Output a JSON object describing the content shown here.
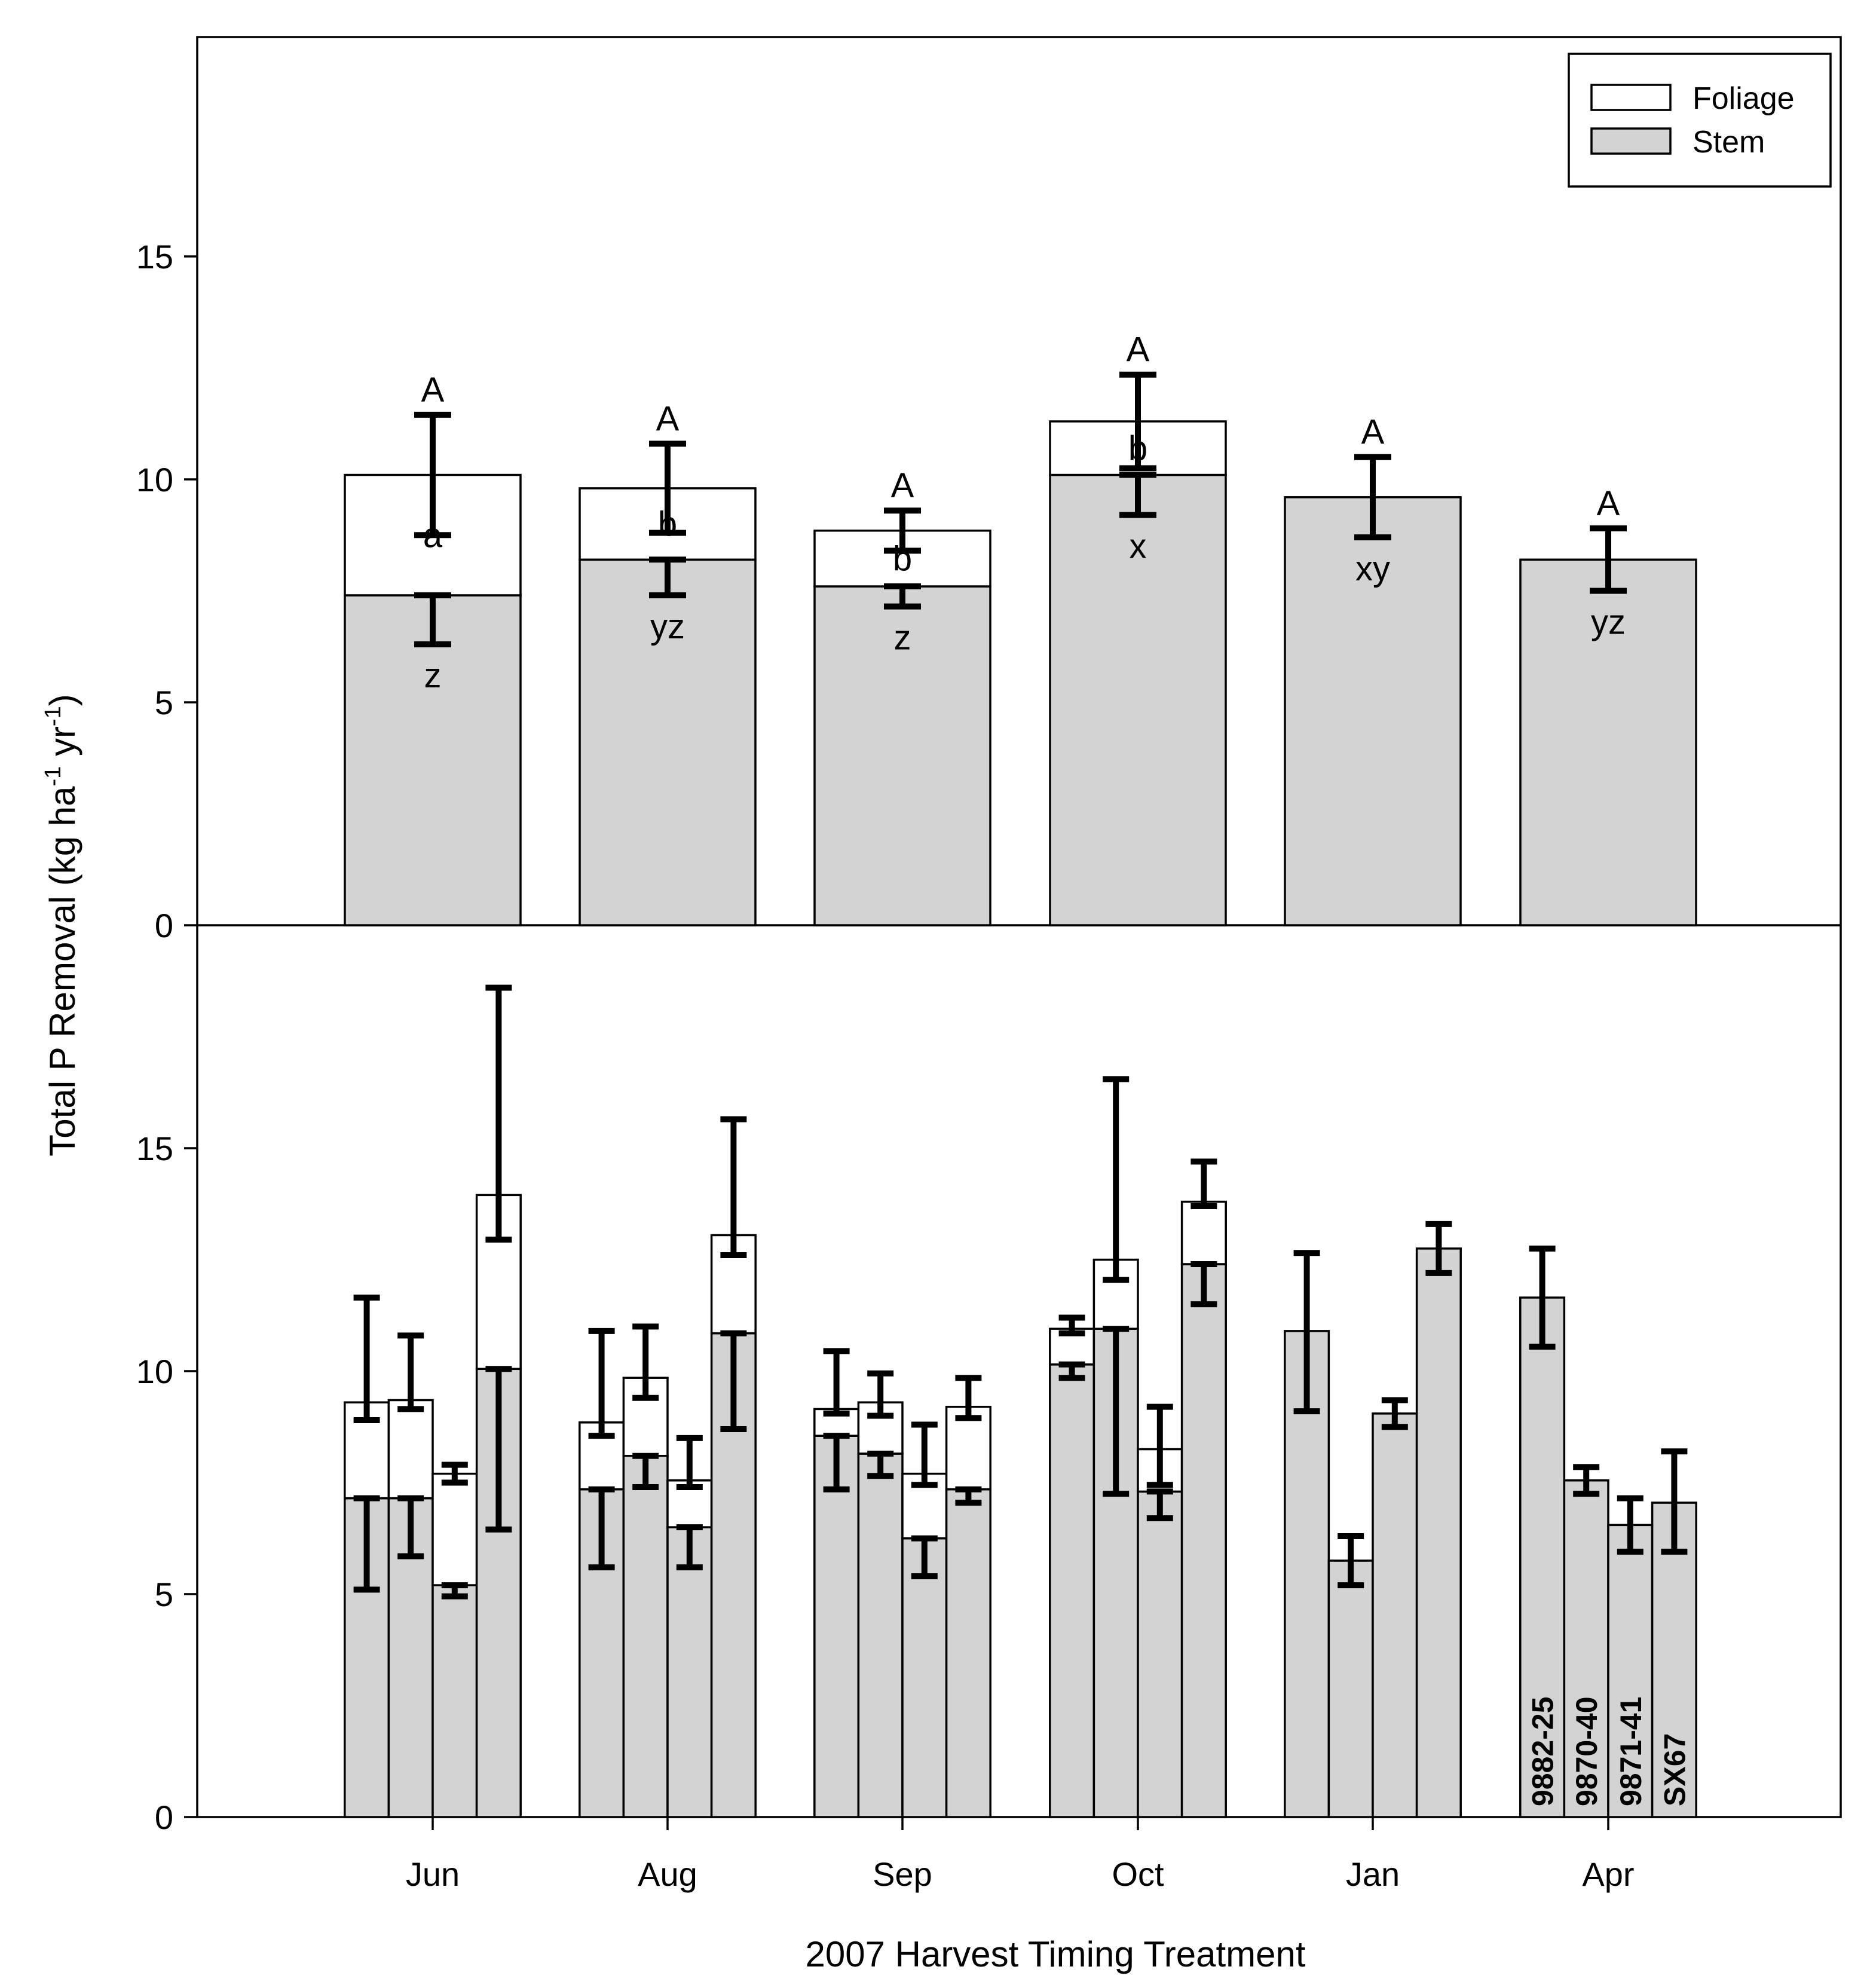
{
  "chart_data": {
    "type": "bar",
    "stacked": true,
    "xlabel": "2007 Harvest Timing Treatment",
    "ylabel": "Total P Removal (kg ha-1 yr-1)",
    "ylabel_parts": {
      "main": "Total P Removal (kg ha",
      "sup1": "-1",
      "mid": " yr",
      "sup2": "-1",
      "end": ")"
    },
    "categories": [
      "Jun",
      "Aug",
      "Sep",
      "Oct",
      "Jan",
      "Apr"
    ],
    "legend": {
      "position": "top-right",
      "entries": [
        {
          "name": "Foliage",
          "color": "#ffffff"
        },
        {
          "name": "Stem",
          "color": "#d3d3d3"
        }
      ]
    },
    "colors": {
      "stem": "#d3d3d3",
      "foliage": "#ffffff",
      "line": "#000000"
    },
    "top_panel": {
      "ylim": [
        0,
        20
      ],
      "yticks": [
        0,
        5,
        10,
        15
      ],
      "series": [
        {
          "name": "Stem",
          "values": [
            7.4,
            8.2,
            7.6,
            10.1,
            9.6,
            8.2
          ],
          "err_low": [
            6.3,
            7.4,
            7.15,
            9.2,
            8.7,
            7.5
          ]
        },
        {
          "name": "Total",
          "values": [
            10.1,
            9.8,
            8.85,
            11.3,
            9.6,
            8.2
          ],
          "err_high": [
            11.45,
            10.8,
            9.3,
            12.35,
            10.5,
            8.9
          ]
        }
      ],
      "letters": {
        "total": [
          "A",
          "A",
          "A",
          "A",
          "A",
          "A"
        ],
        "foliage": [
          "a",
          "b",
          "b",
          "b",
          "",
          ""
        ],
        "stem": [
          "z",
          "yz",
          "z",
          "x",
          "xy",
          "yz"
        ]
      }
    },
    "bottom_panel": {
      "ylim": [
        0,
        20
      ],
      "yticks": [
        0,
        5,
        10,
        15
      ],
      "clones": [
        "9882-25",
        "9870-40",
        "9871-41",
        "SX67"
      ],
      "groups": [
        {
          "category": "Jun",
          "bars": [
            {
              "stem": 7.15,
              "total": 9.3,
              "stem_err_low": 5.1,
              "total_err_high": 11.65,
              "total_err_low": 8.9
            },
            {
              "stem": 7.15,
              "total": 9.35,
              "stem_err_low": 5.85,
              "total_err_high": 10.8,
              "total_err_low": 9.15
            },
            {
              "stem": 5.2,
              "total": 7.7,
              "stem_err_low": 4.95,
              "total_err_high": 7.9,
              "total_err_low": 7.5
            },
            {
              "stem": 10.05,
              "total": 13.95,
              "stem_err_low": 6.45,
              "total_err_high": 18.6,
              "total_err_low": 12.95
            }
          ]
        },
        {
          "category": "Aug",
          "bars": [
            {
              "stem": 7.35,
              "total": 8.85,
              "stem_err_low": 5.6,
              "total_err_high": 10.9,
              "total_err_low": 8.55
            },
            {
              "stem": 8.1,
              "total": 9.85,
              "stem_err_low": 7.4,
              "total_err_high": 11.0,
              "total_err_low": 9.4
            },
            {
              "stem": 6.5,
              "total": 7.55,
              "stem_err_low": 5.6,
              "total_err_high": 8.5,
              "total_err_low": 7.4
            },
            {
              "stem": 10.85,
              "total": 13.05,
              "stem_err_low": 8.7,
              "total_err_high": 15.65,
              "total_err_low": 12.6
            }
          ]
        },
        {
          "category": "Sep",
          "bars": [
            {
              "stem": 8.55,
              "total": 9.15,
              "stem_err_low": 7.35,
              "total_err_high": 10.45,
              "total_err_low": 9.05
            },
            {
              "stem": 8.15,
              "total": 9.3,
              "stem_err_low": 7.65,
              "total_err_high": 9.95,
              "total_err_low": 9.0
            },
            {
              "stem": 6.25,
              "total": 7.7,
              "stem_err_low": 5.4,
              "total_err_high": 8.8,
              "total_err_low": 7.45
            },
            {
              "stem": 7.35,
              "total": 9.2,
              "stem_err_low": 7.05,
              "total_err_high": 9.85,
              "total_err_low": 8.95
            }
          ]
        },
        {
          "category": "Oct",
          "bars": [
            {
              "stem": 10.15,
              "total": 10.95,
              "stem_err_low": 9.85,
              "total_err_high": 11.2,
              "total_err_low": 10.85
            },
            {
              "stem": 10.95,
              "total": 12.5,
              "stem_err_low": 7.25,
              "total_err_high": 16.55,
              "total_err_low": 12.05
            },
            {
              "stem": 7.3,
              "total": 8.25,
              "stem_err_low": 6.7,
              "total_err_high": 9.2,
              "total_err_low": 7.45
            },
            {
              "stem": 12.4,
              "total": 13.8,
              "stem_err_low": 11.5,
              "total_err_high": 14.7,
              "total_err_low": 13.7
            }
          ]
        },
        {
          "category": "Jan",
          "bars": [
            {
              "stem": 10.9,
              "total": 10.9,
              "stem_err_low": 9.1,
              "total_err_high": 12.65
            },
            {
              "stem": 5.75,
              "total": 5.75,
              "stem_err_low": 5.2,
              "total_err_high": 6.3
            },
            {
              "stem": 9.05,
              "total": 9.05,
              "stem_err_low": 8.75,
              "total_err_high": 9.35
            },
            {
              "stem": 12.75,
              "total": 12.75,
              "stem_err_low": 12.2,
              "total_err_high": 13.3
            }
          ]
        },
        {
          "category": "Apr",
          "bars": [
            {
              "stem": 11.65,
              "total": 11.65,
              "stem_err_low": 10.55,
              "total_err_high": 12.75
            },
            {
              "stem": 7.55,
              "total": 7.55,
              "stem_err_low": 7.25,
              "total_err_high": 7.85
            },
            {
              "stem": 6.55,
              "total": 6.55,
              "stem_err_low": 5.95,
              "total_err_high": 7.15
            },
            {
              "stem": 7.05,
              "total": 7.05,
              "stem_err_low": 5.95,
              "total_err_high": 8.2
            }
          ]
        }
      ]
    }
  }
}
